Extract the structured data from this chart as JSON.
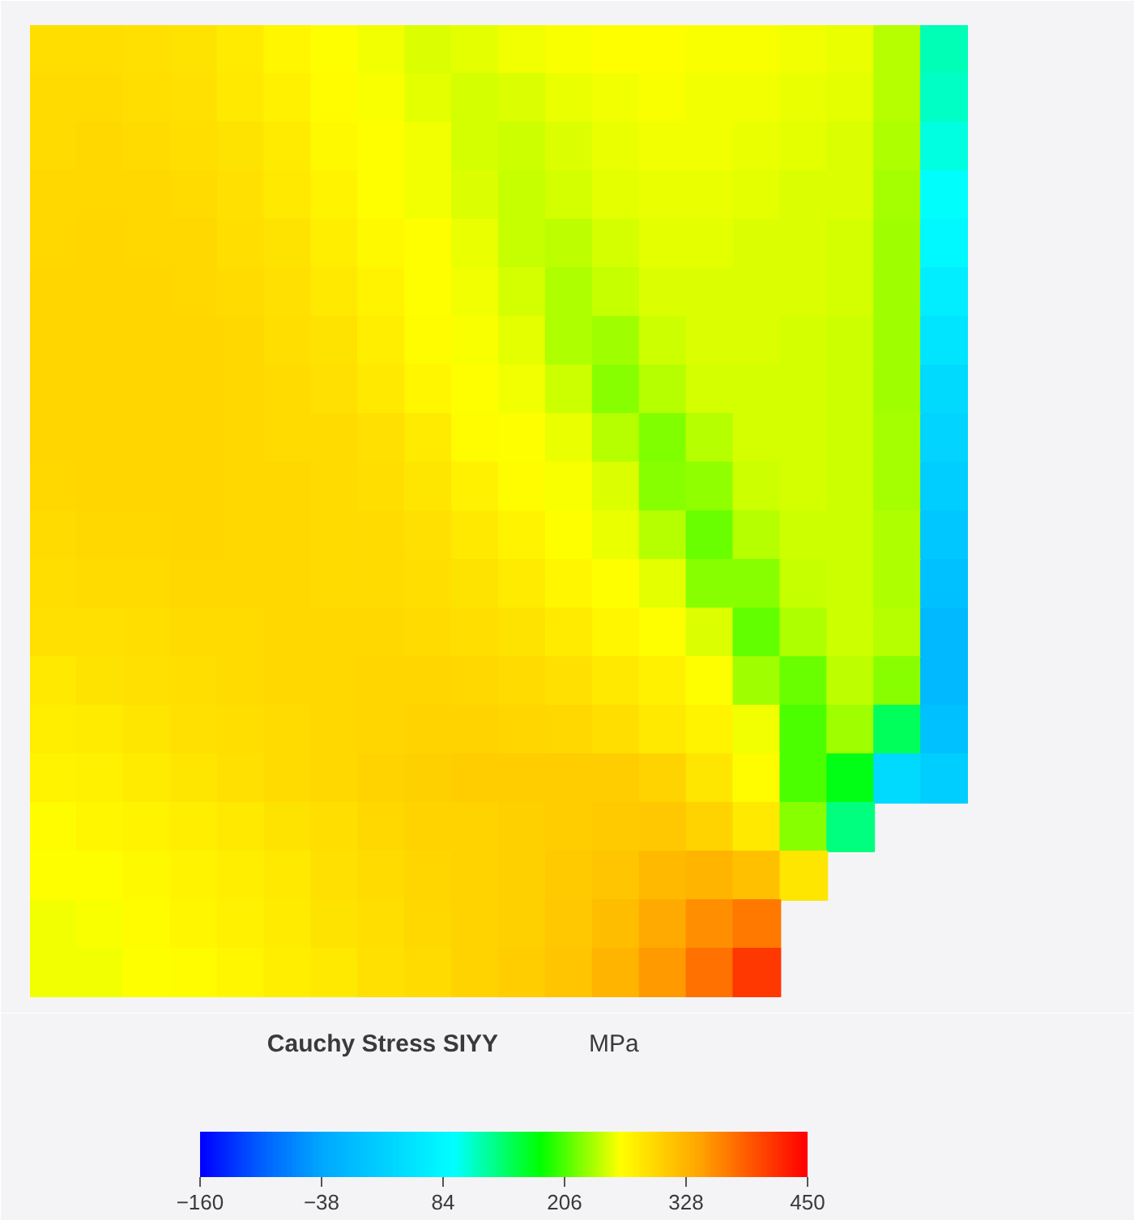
{
  "chart_data": {
    "type": "heatmap",
    "categories": [
      null,
      null,
      null,
      null,
      null,
      null,
      null,
      null,
      null,
      null,
      null,
      null,
      null,
      null,
      null,
      null,
      null,
      null,
      null,
      null
    ],
    "y_categories": [
      null,
      null,
      null,
      null,
      null,
      null,
      null,
      null,
      null,
      null,
      null,
      null,
      null,
      null,
      null,
      null,
      null,
      null,
      null,
      null
    ],
    "cells": [
      [
        292,
        292,
        290,
        287,
        280,
        270,
        264,
        258,
        251,
        253,
        257,
        260,
        262,
        262,
        261,
        260,
        258,
        255,
        240,
        120
      ],
      [
        293,
        294,
        292,
        289,
        283,
        274,
        265,
        260,
        254,
        249,
        252,
        256,
        259,
        260,
        259,
        258,
        256,
        254,
        238,
        115
      ],
      [
        295,
        296,
        294,
        292,
        287,
        279,
        268,
        264,
        257,
        248,
        247,
        252,
        256,
        258,
        257,
        256,
        254,
        252,
        236,
        105
      ],
      [
        296,
        297,
        296,
        294,
        290,
        283,
        273,
        264,
        259,
        252,
        243,
        248,
        253,
        255,
        255,
        254,
        252,
        250,
        234,
        95
      ],
      [
        297,
        298,
        297,
        296,
        292,
        287,
        278,
        267,
        262,
        255,
        244,
        242,
        249,
        253,
        253,
        252,
        251,
        249,
        232,
        85
      ],
      [
        298,
        299,
        298,
        297,
        294,
        290,
        283,
        272,
        264,
        258,
        248,
        236,
        244,
        250,
        252,
        251,
        250,
        248,
        231,
        70
      ],
      [
        298,
        299,
        299,
        298,
        296,
        292,
        287,
        277,
        266,
        261,
        253,
        236,
        232,
        246,
        250,
        250,
        249,
        247,
        231,
        55
      ],
      [
        298,
        299,
        299,
        298,
        297,
        294,
        290,
        282,
        270,
        264,
        257,
        246,
        226,
        238,
        248,
        249,
        249,
        247,
        233,
        40
      ],
      [
        298,
        299,
        299,
        298,
        297,
        295,
        293,
        288,
        279,
        266,
        263,
        255,
        240,
        222,
        240,
        248,
        249,
        247,
        234,
        30
      ],
      [
        297,
        298,
        298,
        298,
        297,
        296,
        294,
        291,
        285,
        276,
        265,
        260,
        250,
        226,
        228,
        246,
        248,
        247,
        235,
        20
      ],
      [
        295,
        297,
        297,
        298,
        297,
        296,
        295,
        293,
        289,
        282,
        272,
        264,
        256,
        240,
        216,
        238,
        247,
        247,
        236,
        10
      ],
      [
        292,
        294,
        295,
        296,
        296,
        296,
        295,
        294,
        292,
        287,
        280,
        271,
        264,
        254,
        226,
        226,
        245,
        247,
        237,
        0
      ],
      [
        288,
        290,
        292,
        294,
        295,
        296,
        296,
        296,
        295,
        292,
        287,
        279,
        270,
        264,
        250,
        212,
        236,
        246,
        238,
        -10
      ],
      [
        283,
        286,
        289,
        292,
        294,
        296,
        297,
        298,
        298,
        297,
        294,
        290,
        283,
        274,
        264,
        232,
        215,
        242,
        225,
        -10
      ],
      [
        277,
        280,
        284,
        288,
        292,
        295,
        297,
        299,
        300,
        300,
        299,
        296,
        291,
        283,
        273,
        258,
        205,
        232,
        150,
        0
      ],
      [
        272,
        275,
        279,
        284,
        289,
        293,
        297,
        300,
        303,
        305,
        306,
        306,
        305,
        300,
        285,
        266,
        205,
        175,
        40,
        20
      ],
      [
        266,
        269,
        273,
        277,
        282,
        287,
        292,
        297,
        300,
        302,
        304,
        306,
        309,
        310,
        300,
        282,
        225,
        140,
        null,
        null
      ],
      [
        262,
        264,
        268,
        272,
        278,
        283,
        289,
        294,
        298,
        301,
        304,
        308,
        314,
        322,
        328,
        318,
        285,
        null,
        null,
        null
      ],
      [
        259,
        261,
        265,
        269,
        274,
        280,
        286,
        291,
        296,
        300,
        304,
        310,
        320,
        336,
        355,
        370,
        null,
        null,
        null,
        null
      ],
      [
        257,
        259,
        262,
        266,
        271,
        277,
        283,
        289,
        295,
        300,
        305,
        314,
        328,
        348,
        375,
        412,
        null,
        null,
        null,
        null
      ]
    ],
    "clim": [
      -160,
      450
    ],
    "cticks": [
      -160,
      -38,
      84,
      206,
      328,
      450
    ],
    "clabel": "Cauchy Stress SIYY",
    "annotations": [
      "MPa"
    ],
    "tick_labels": false
  }
}
